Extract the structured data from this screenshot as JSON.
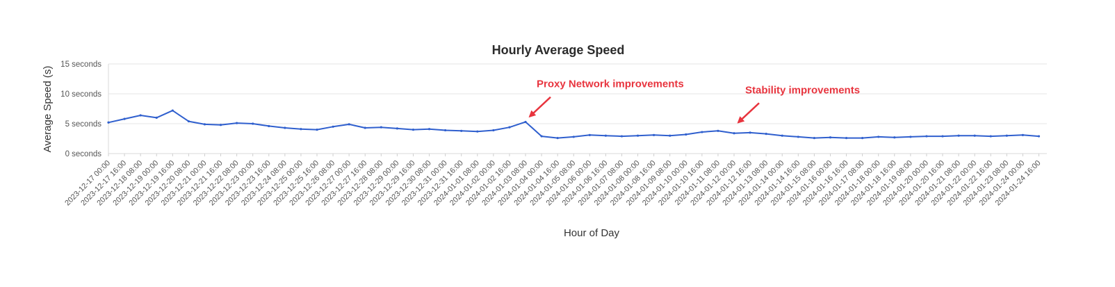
{
  "chart_data": {
    "type": "line",
    "title": "Hourly Average Speed",
    "xlabel": "Hour of Day",
    "ylabel": "Average Speed (s)",
    "ylim": [
      0,
      15
    ],
    "y_ticks": [
      {
        "value": 0,
        "label": "0 seconds"
      },
      {
        "value": 5,
        "label": "5 seconds"
      },
      {
        "value": 10,
        "label": "10 seconds"
      },
      {
        "value": 15,
        "label": "15 seconds"
      }
    ],
    "xlim": [
      "2023-12-17 00:00",
      "2024-01-25 00:00"
    ],
    "x_ticks": [
      "2023-12-17 00:00",
      "2023-12-17 16:00",
      "2023-12-18 08:00",
      "2023-12-19 00:00",
      "2023-12-19 16:00",
      "2023-12-20 08:00",
      "2023-12-21 00:00",
      "2023-12-21 16:00",
      "2023-12-22 08:00",
      "2023-12-23 00:00",
      "2023-12-23 16:00",
      "2023-12-24 08:00",
      "2023-12-25 00:00",
      "2023-12-25 16:00",
      "2023-12-26 08:00",
      "2023-12-27 00:00",
      "2023-12-27 16:00",
      "2023-12-28 08:00",
      "2023-12-29 00:00",
      "2023-12-29 16:00",
      "2023-12-30 08:00",
      "2023-12-31 00:00",
      "2023-12-31 16:00",
      "2024-01-01 08:00",
      "2024-01-02 00:00",
      "2024-01-02 16:00",
      "2024-01-03 08:00",
      "2024-01-04 00:00",
      "2024-01-04 16:00",
      "2024-01-05 08:00",
      "2024-01-06 00:00",
      "2024-01-06 16:00",
      "2024-01-07 08:00",
      "2024-01-08 00:00",
      "2024-01-08 16:00",
      "2024-01-09 08:00",
      "2024-01-10 00:00",
      "2024-01-10 16:00",
      "2024-01-11 08:00",
      "2024-01-12 00:00",
      "2024-01-12 16:00",
      "2024-01-13 08:00",
      "2024-01-14 00:00",
      "2024-01-14 16:00",
      "2024-01-15 08:00",
      "2024-01-16 00:00",
      "2024-01-16 16:00",
      "2024-01-17 08:00",
      "2024-01-18 00:00",
      "2024-01-18 16:00",
      "2024-01-19 08:00",
      "2024-01-20 00:00",
      "2024-01-20 16:00",
      "2024-01-21 08:00",
      "2024-01-22 00:00",
      "2024-01-22 16:00",
      "2024-01-23 08:00",
      "2024-01-24 00:00",
      "2024-01-24 16:00"
    ],
    "grid": true,
    "series": [
      {
        "color": "#2f5fce",
        "x": [
          "2023-12-17 00:00",
          "2023-12-17 16:00",
          "2023-12-18 08:00",
          "2023-12-19 00:00",
          "2023-12-19 16:00",
          "2023-12-20 08:00",
          "2023-12-21 00:00",
          "2023-12-21 16:00",
          "2023-12-22 08:00",
          "2023-12-23 00:00",
          "2023-12-23 16:00",
          "2023-12-24 08:00",
          "2023-12-25 00:00",
          "2023-12-25 16:00",
          "2023-12-26 08:00",
          "2023-12-27 00:00",
          "2023-12-27 16:00",
          "2023-12-28 08:00",
          "2023-12-29 00:00",
          "2023-12-29 16:00",
          "2023-12-30 08:00",
          "2023-12-31 00:00",
          "2023-12-31 16:00",
          "2024-01-01 08:00",
          "2024-01-02 00:00",
          "2024-01-02 16:00",
          "2024-01-03 08:00",
          "2024-01-04 00:00",
          "2024-01-04 16:00",
          "2024-01-05 08:00",
          "2024-01-06 00:00",
          "2024-01-06 16:00",
          "2024-01-07 08:00",
          "2024-01-08 00:00",
          "2024-01-08 16:00",
          "2024-01-09 08:00",
          "2024-01-10 00:00",
          "2024-01-10 16:00",
          "2024-01-11 08:00",
          "2024-01-12 00:00",
          "2024-01-12 16:00",
          "2024-01-13 08:00",
          "2024-01-14 00:00",
          "2024-01-14 16:00",
          "2024-01-15 08:00",
          "2024-01-16 00:00",
          "2024-01-16 16:00",
          "2024-01-17 08:00",
          "2024-01-18 00:00",
          "2024-01-18 16:00",
          "2024-01-19 08:00",
          "2024-01-20 00:00",
          "2024-01-20 16:00",
          "2024-01-21 08:00",
          "2024-01-22 00:00",
          "2024-01-22 16:00",
          "2024-01-23 08:00",
          "2024-01-24 00:00",
          "2024-01-24 16:00"
        ],
        "values": [
          5.2,
          5.8,
          6.4,
          6.0,
          7.2,
          5.4,
          4.9,
          4.8,
          5.1,
          5.0,
          4.6,
          4.3,
          4.1,
          4.0,
          4.5,
          4.9,
          4.3,
          4.4,
          4.2,
          4.0,
          4.1,
          3.9,
          3.8,
          3.7,
          3.9,
          4.4,
          5.3,
          2.9,
          2.6,
          2.8,
          3.1,
          3.0,
          2.9,
          3.0,
          3.1,
          3.0,
          3.2,
          3.6,
          3.8,
          3.4,
          3.5,
          3.3,
          3.0,
          2.8,
          2.6,
          2.7,
          2.6,
          2.6,
          2.8,
          2.7,
          2.8,
          2.9,
          2.9,
          3.0,
          3.0,
          2.9,
          3.0,
          3.1,
          2.9
        ]
      }
    ],
    "annotations": [
      {
        "text": "Proxy Network improvements",
        "color": "#e8343e",
        "x": "2024-01-03 08:00",
        "y": 5.5
      },
      {
        "text": "Stability improvements",
        "color": "#e8343e",
        "x": "2024-01-12 00:00",
        "y": 4.5
      }
    ]
  }
}
